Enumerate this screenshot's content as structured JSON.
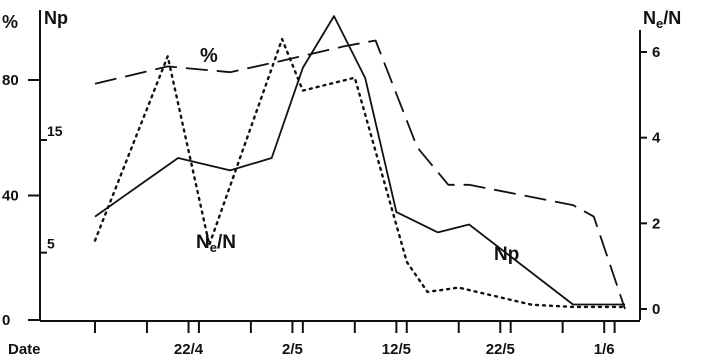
{
  "chart_data": {
    "type": "line",
    "x_label": "Date",
    "x_ticks": [
      "22/4",
      "2/5",
      "12/5",
      "22/5",
      "1/6"
    ],
    "axes": {
      "left_outer": {
        "label": "%",
        "ticks": [
          "0",
          "40",
          "80"
        ],
        "range": [
          0,
          100
        ]
      },
      "left_inner": {
        "label": "Np",
        "ticks": [
          "5",
          "15"
        ],
        "range": [
          0,
          25
        ]
      },
      "right": {
        "label": "Ne/N",
        "label_parts": [
          "N",
          "e",
          "/N"
        ],
        "ticks": [
          "0",
          "2",
          "4",
          "6"
        ],
        "range": [
          0,
          6.8
        ]
      }
    },
    "x_domain": [
      "2000-04-13",
      "2000-06-03"
    ],
    "series": [
      {
        "name": "%",
        "axis": "left_outer",
        "style": "dashed",
        "points": [
          [
            "2000-04-13",
            78
          ],
          [
            "2000-04-20",
            84
          ],
          [
            "2000-04-26",
            82
          ],
          [
            "2000-05-01",
            86
          ],
          [
            "2000-05-07",
            91
          ],
          [
            "2000-05-10",
            93
          ],
          [
            "2000-05-14",
            56
          ],
          [
            "2000-05-17",
            43
          ],
          [
            "2000-05-19",
            43
          ],
          [
            "2000-05-29",
            36
          ],
          [
            "2000-05-31",
            32
          ],
          [
            "2000-06-03",
            0
          ]
        ]
      },
      {
        "name": "Np",
        "axis": "left_inner",
        "style": "solid",
        "points": [
          [
            "2000-04-13",
            8.2
          ],
          [
            "2000-04-21",
            13.4
          ],
          [
            "2000-04-26",
            12.3
          ],
          [
            "2000-04-30",
            13.4
          ],
          [
            "2000-05-03",
            21.4
          ],
          [
            "2000-05-06",
            26
          ],
          [
            "2000-05-09",
            20.5
          ],
          [
            "2000-05-12",
            8.6
          ],
          [
            "2000-05-16",
            6.8
          ],
          [
            "2000-05-19",
            7.5
          ],
          [
            "2000-05-29",
            0.4
          ],
          [
            "2000-06-03",
            0.4
          ]
        ]
      },
      {
        "name": "Ne/N",
        "axis": "right",
        "style": "dotted",
        "points": [
          [
            "2000-04-13",
            1.6
          ],
          [
            "2000-04-20",
            5.9
          ],
          [
            "2000-04-24",
            1.5
          ],
          [
            "2000-05-01",
            6.3
          ],
          [
            "2000-05-03",
            5.1
          ],
          [
            "2000-05-08",
            5.4
          ],
          [
            "2000-05-13",
            1.1
          ],
          [
            "2000-05-15",
            0.4
          ],
          [
            "2000-05-18",
            0.5
          ],
          [
            "2000-05-25",
            0.1
          ],
          [
            "2000-05-29",
            0.05
          ],
          [
            "2000-06-03",
            0.05
          ]
        ]
      }
    ],
    "series_labels": [
      {
        "text": "%",
        "parts": [
          "%"
        ]
      },
      {
        "text": "Ne/N",
        "parts": [
          "N",
          "e",
          "/N"
        ]
      },
      {
        "text": "Np",
        "parts": [
          "Np"
        ]
      }
    ]
  }
}
